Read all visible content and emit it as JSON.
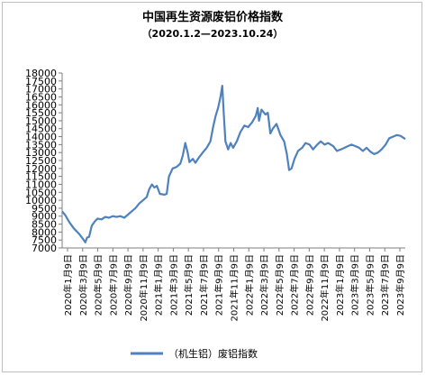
{
  "chart_data": {
    "type": "line",
    "title": "中国再生资源废铝价格指数",
    "subtitle": "（2020.1.2—2023.10.24）",
    "xlabel": "",
    "ylabel": "",
    "ylim": [
      7000,
      18000
    ],
    "yticks": [
      "7000",
      "7500",
      "8000",
      "8500",
      "9000",
      "9500",
      "10000",
      "10500",
      "11000",
      "11500",
      "12000",
      "12500",
      "13000",
      "13500",
      "14000",
      "14500",
      "15000",
      "15500",
      "16000",
      "16500",
      "17000",
      "17500",
      "18000"
    ],
    "xticks": [
      "2020年1月9日",
      "2020年3月9日",
      "2020年5月9日",
      "2020年7月9日",
      "2020年9月9日",
      "2020年11月9日",
      "2021年1月9日",
      "2021年3月9日",
      "2021年5月9日",
      "2021年7月9日",
      "2021年9月9日",
      "2021年11月9日",
      "2022年1月9日",
      "2022年3月9日",
      "2022年5月9日",
      "2022年7月9日",
      "2022年9月9日",
      "2022年11月9日",
      "2023年1月9日",
      "2023年3月9日",
      "2023年5月9日",
      "2023年7月9日",
      "2023年9月9日"
    ],
    "x_range": [
      "2020-01-02",
      "2023-10-24"
    ],
    "grid": false,
    "legend_position": "bottom",
    "series": [
      {
        "name": "（机生铝）废铝指数",
        "color": "#4f81bd",
        "points": [
          [
            "2020-01-02",
            9300
          ],
          [
            "2020-01-15",
            9050
          ],
          [
            "2020-02-01",
            8600
          ],
          [
            "2020-02-20",
            8200
          ],
          [
            "2020-03-10",
            7900
          ],
          [
            "2020-03-25",
            7600
          ],
          [
            "2020-04-05",
            7350
          ],
          [
            "2020-04-12",
            7650
          ],
          [
            "2020-04-20",
            7700
          ],
          [
            "2020-05-01",
            8400
          ],
          [
            "2020-05-15",
            8700
          ],
          [
            "2020-05-25",
            8850
          ],
          [
            "2020-06-10",
            8800
          ],
          [
            "2020-06-25",
            8950
          ],
          [
            "2020-07-10",
            8900
          ],
          [
            "2020-07-25",
            9000
          ],
          [
            "2020-08-10",
            8950
          ],
          [
            "2020-08-25",
            9000
          ],
          [
            "2020-09-10",
            8900
          ],
          [
            "2020-09-25",
            9100
          ],
          [
            "2020-10-10",
            9300
          ],
          [
            "2020-10-25",
            9500
          ],
          [
            "2020-11-10",
            9800
          ],
          [
            "2020-11-25",
            10000
          ],
          [
            "2020-12-10",
            10200
          ],
          [
            "2020-12-20",
            10700
          ],
          [
            "2020-12-31",
            11000
          ],
          [
            "2021-01-10",
            10800
          ],
          [
            "2021-01-20",
            10900
          ],
          [
            "2021-02-01",
            10400
          ],
          [
            "2021-02-20",
            10350
          ],
          [
            "2021-03-01",
            10400
          ],
          [
            "2021-03-10",
            11500
          ],
          [
            "2021-03-25",
            12000
          ],
          [
            "2021-04-10",
            12100
          ],
          [
            "2021-04-25",
            12300
          ],
          [
            "2021-05-05",
            12800
          ],
          [
            "2021-05-15",
            13600
          ],
          [
            "2021-05-25",
            13000
          ],
          [
            "2021-06-01",
            12400
          ],
          [
            "2021-06-15",
            12600
          ],
          [
            "2021-06-25",
            12350
          ],
          [
            "2021-07-10",
            12700
          ],
          [
            "2021-07-25",
            13000
          ],
          [
            "2021-08-10",
            13300
          ],
          [
            "2021-08-25",
            13700
          ],
          [
            "2021-09-05",
            14600
          ],
          [
            "2021-09-15",
            15300
          ],
          [
            "2021-09-25",
            15800
          ],
          [
            "2021-10-05",
            16500
          ],
          [
            "2021-10-12",
            17200
          ],
          [
            "2021-10-18",
            15500
          ],
          [
            "2021-10-25",
            13700
          ],
          [
            "2021-11-05",
            13200
          ],
          [
            "2021-11-15",
            13600
          ],
          [
            "2021-11-25",
            13300
          ],
          [
            "2021-12-10",
            13700
          ],
          [
            "2021-12-25",
            14300
          ],
          [
            "2022-01-10",
            14700
          ],
          [
            "2022-01-25",
            14600
          ],
          [
            "2022-02-10",
            14900
          ],
          [
            "2022-02-25",
            15300
          ],
          [
            "2022-03-05",
            15800
          ],
          [
            "2022-03-10",
            15000
          ],
          [
            "2022-03-20",
            15700
          ],
          [
            "2022-04-05",
            15400
          ],
          [
            "2022-04-15",
            15500
          ],
          [
            "2022-04-25",
            14200
          ],
          [
            "2022-05-05",
            14500
          ],
          [
            "2022-05-20",
            14800
          ],
          [
            "2022-06-05",
            14100
          ],
          [
            "2022-06-20",
            13700
          ],
          [
            "2022-07-01",
            12900
          ],
          [
            "2022-07-10",
            11900
          ],
          [
            "2022-07-20",
            12000
          ],
          [
            "2022-08-01",
            12600
          ],
          [
            "2022-08-15",
            13100
          ],
          [
            "2022-09-01",
            13300
          ],
          [
            "2022-09-15",
            13600
          ],
          [
            "2022-10-01",
            13500
          ],
          [
            "2022-10-15",
            13200
          ],
          [
            "2022-11-01",
            13500
          ],
          [
            "2022-11-15",
            13700
          ],
          [
            "2022-12-01",
            13500
          ],
          [
            "2022-12-15",
            13600
          ],
          [
            "2023-01-05",
            13400
          ],
          [
            "2023-01-20",
            13100
          ],
          [
            "2023-02-05",
            13200
          ],
          [
            "2023-02-20",
            13300
          ],
          [
            "2023-03-05",
            13400
          ],
          [
            "2023-03-20",
            13500
          ],
          [
            "2023-04-05",
            13400
          ],
          [
            "2023-04-20",
            13300
          ],
          [
            "2023-05-05",
            13100
          ],
          [
            "2023-05-20",
            13300
          ],
          [
            "2023-06-05",
            13050
          ],
          [
            "2023-06-20",
            12900
          ],
          [
            "2023-07-05",
            13000
          ],
          [
            "2023-07-20",
            13200
          ],
          [
            "2023-08-05",
            13500
          ],
          [
            "2023-08-20",
            13900
          ],
          [
            "2023-09-05",
            14000
          ],
          [
            "2023-09-20",
            14100
          ],
          [
            "2023-10-05",
            14050
          ],
          [
            "2023-10-24",
            13850
          ]
        ]
      }
    ]
  }
}
